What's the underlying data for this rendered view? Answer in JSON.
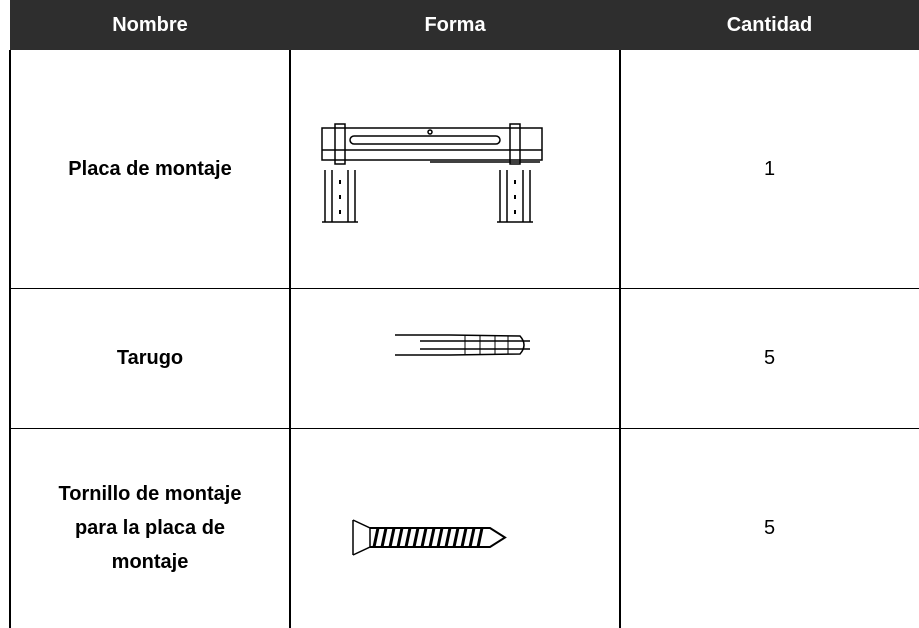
{
  "table": {
    "header": [
      "Nombre",
      "Forma",
      "Cantidad"
    ],
    "rows": [
      {
        "name": "Placa de montaje",
        "quantity": 1
      },
      {
        "name": "Tarugo",
        "quantity": 5
      },
      {
        "name": "Tornillo de montaje para la placa de montaje",
        "quantity": 5
      }
    ]
  }
}
